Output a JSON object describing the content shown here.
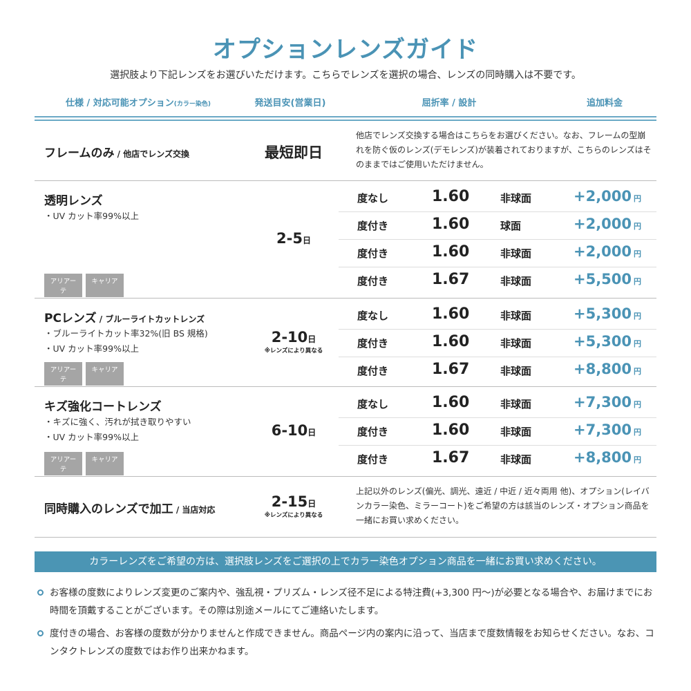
{
  "title": "オプションレンズガイド",
  "subtitle": "選択肢より下記レンズをお選びいただけます。こちらでレンズを選択の場合、レンズの同時購入は不要です。",
  "headers": {
    "spec": "仕様 / 対応可能オプション",
    "spec_small": "(カラー染色)",
    "delivery": "発送目安(営業日)",
    "index": "屈折率 / 設計",
    "price": "追加料金"
  },
  "sections": [
    {
      "name": "フレームのみ",
      "name_sub": " / 他店でレンズ交換",
      "delivery": "最短即日",
      "desc": "他店でレンズ交換する場合はこちらをお選びください。なお、フレームの型崩れを防ぐ仮のレンズ(デモレンズ)が装着されておりますが、こちらのレンズはそのままではご使用いただけません。"
    },
    {
      "name": "透明レンズ",
      "name_sub": "",
      "features": [
        "・UV カット率99%以上"
      ],
      "tags": [
        "アリアーテ",
        "キャリア"
      ],
      "delivery": "2-5",
      "delivery_unit": "日",
      "rows": [
        {
          "use": "度なし",
          "index": "1.60",
          "design": "非球面",
          "price": "+2,000",
          "unit": "円"
        },
        {
          "use": "度付き",
          "index": "1.60",
          "design": "球面",
          "price": "+2,000",
          "unit": "円"
        },
        {
          "use": "度付き",
          "index": "1.60",
          "design": "非球面",
          "price": "+2,000",
          "unit": "円"
        },
        {
          "use": "度付き",
          "index": "1.67",
          "design": "非球面",
          "price": "+5,500",
          "unit": "円"
        }
      ]
    },
    {
      "name": "PCレンズ",
      "name_sub": " / ブルーライトカットレンズ",
      "features": [
        "・ブルーライトカット率32%(旧 BS 規格)",
        "・UV カット率99%以上"
      ],
      "tags": [
        "アリアーテ",
        "キャリア"
      ],
      "delivery": "2-10",
      "delivery_unit": "日",
      "delivery_note": "※レンズにより異なる",
      "rows": [
        {
          "use": "度なし",
          "index": "1.60",
          "design": "非球面",
          "price": "+5,300",
          "unit": "円"
        },
        {
          "use": "度付き",
          "index": "1.60",
          "design": "非球面",
          "price": "+5,300",
          "unit": "円"
        },
        {
          "use": "度付き",
          "index": "1.67",
          "design": "非球面",
          "price": "+8,800",
          "unit": "円"
        }
      ]
    },
    {
      "name": "キズ強化コートレンズ",
      "name_sub": "",
      "features": [
        "・キズに強く、汚れが拭き取りやすい",
        "・UV カット率99%以上"
      ],
      "tags": [
        "アリアーテ",
        "キャリア"
      ],
      "delivery": "6-10",
      "delivery_unit": "日",
      "rows": [
        {
          "use": "度なし",
          "index": "1.60",
          "design": "非球面",
          "price": "+7,300",
          "unit": "円"
        },
        {
          "use": "度付き",
          "index": "1.60",
          "design": "非球面",
          "price": "+7,300",
          "unit": "円"
        },
        {
          "use": "度付き",
          "index": "1.67",
          "design": "非球面",
          "price": "+8,800",
          "unit": "円"
        }
      ]
    },
    {
      "name": "同時購入のレンズで加工",
      "name_sub": " / 当店対応",
      "delivery": "2-15",
      "delivery_unit": "日",
      "delivery_note": "※レンズにより異なる",
      "desc": "上記以外のレンズ(偏光、調光、遠近 / 中近 / 近々両用 他)、オプション(レイバンカラー染色、ミラーコート)をご希望の方は該当のレンズ・オプション商品を一緒にお買い求めください。"
    }
  ],
  "banner": "カラーレンズをご希望の方は、選択肢レンズをご選択の上でカラー染色オプション商品を一緒にお買い求めください。",
  "notes": [
    "お客様の度数によりレンズ変更のご案内や、強乱視・プリズム・レンズ径不足による特注費(+3,300 円〜)が必要となる場合や、お届けまでにお時間を頂戴することがございます。その際は別途メールにてご連絡いたします。",
    "度付きの場合、お客様の度数が分かりませんと作成できません。商品ページ内の案内に沿って、当店まで度数情報をお知らせください。なお、コンタクトレンズの度数ではお作り出来かねます。"
  ],
  "colors": {
    "accent": "#4a93b5",
    "banner": "#4b95b4",
    "tag": "#a5a5a5"
  }
}
